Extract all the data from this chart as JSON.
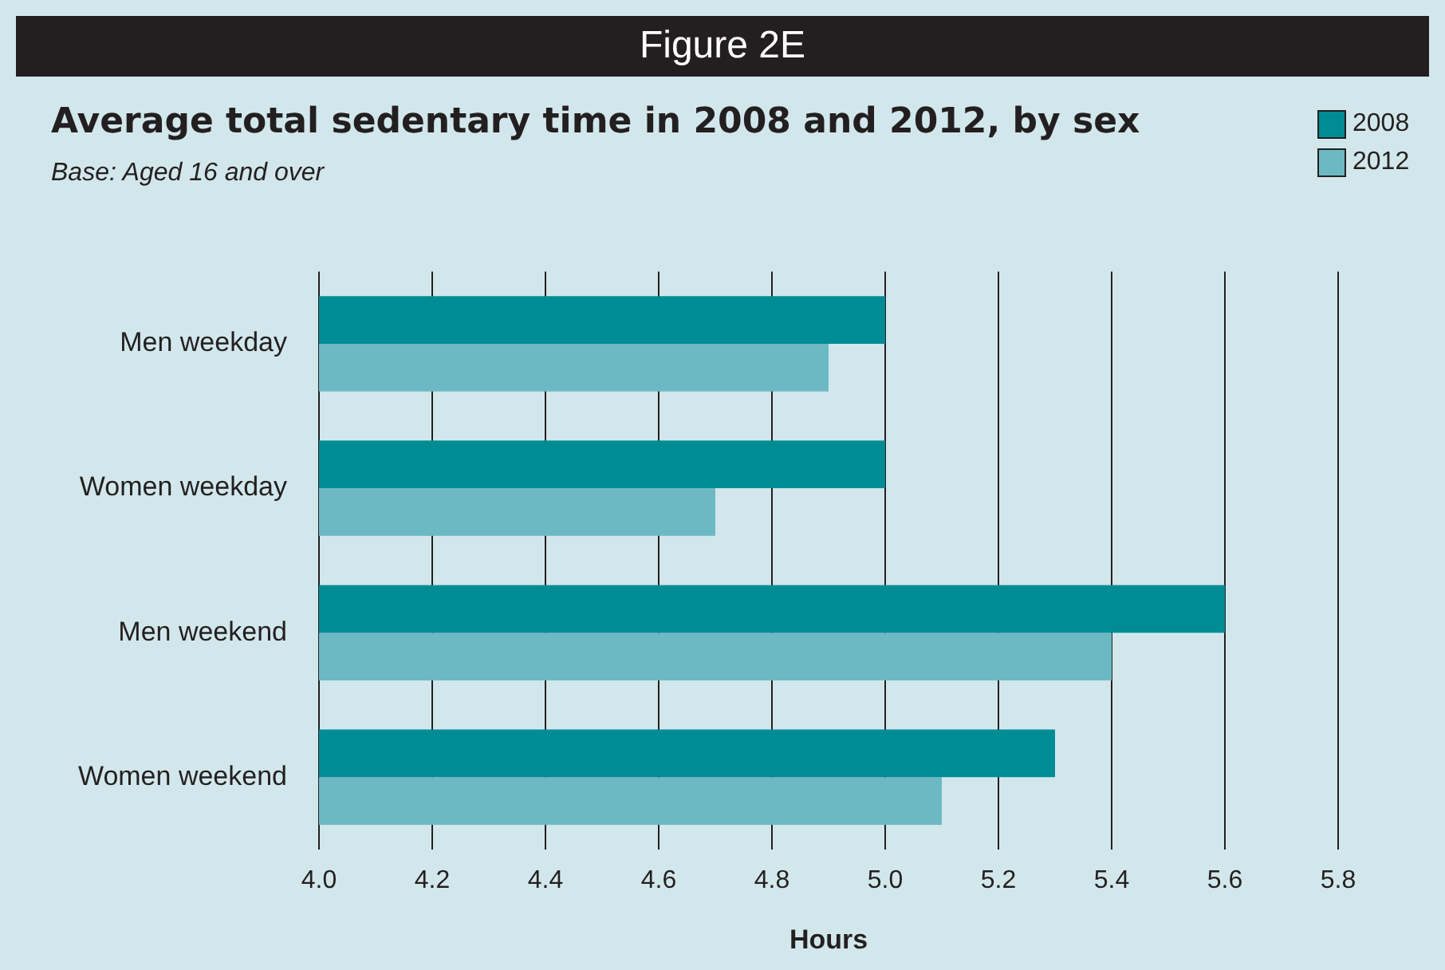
{
  "chart_data": {
    "type": "bar",
    "orientation": "horizontal",
    "title": "Average total sedentary time in 2008 and 2012, by sex",
    "subtitle": "Base: Aged 16 and over",
    "annotations": [
      "Figure 2E"
    ],
    "categories": [
      "Men weekday",
      "Women weekday",
      "Men weekend",
      "Women weekend"
    ],
    "series": [
      {
        "name": "2008",
        "color": "#008c95",
        "values": [
          5.0,
          5.0,
          5.6,
          5.3
        ]
      },
      {
        "name": "2012",
        "color": "#6cb9c3",
        "values": [
          4.9,
          4.7,
          5.4,
          5.1
        ]
      }
    ],
    "xlim": [
      4.0,
      5.8
    ],
    "xticks": [
      {
        "value": 4.0,
        "label": "4.0"
      },
      {
        "value": 4.2,
        "label": "4.2"
      },
      {
        "value": 4.4,
        "label": "4.4"
      },
      {
        "value": 4.6,
        "label": "4.6"
      },
      {
        "value": 4.8,
        "label": "4.8"
      },
      {
        "value": 5.0,
        "label": "5.0"
      },
      {
        "value": 5.2,
        "label": "5.2"
      },
      {
        "value": 5.4,
        "label": "5.4"
      },
      {
        "value": 5.6,
        "label": "5.6"
      },
      {
        "value": 5.8,
        "label": "5.8"
      }
    ],
    "xlabel": "Hours",
    "grid": "x",
    "legend": "top right"
  }
}
